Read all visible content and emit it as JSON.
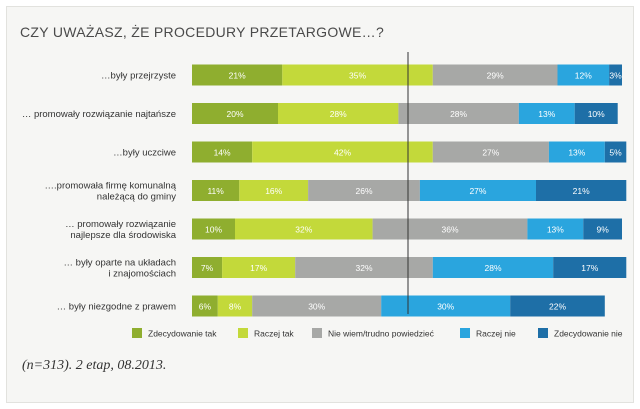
{
  "chart_data": {
    "type": "bar",
    "stacked": true,
    "orientation": "horizontal",
    "title": "CZY UWAŻASZ, ŻE PROCEDURY PRZETARGOWE…?",
    "categories": [
      [
        "…były przejrzyste"
      ],
      [
        "… promowały rozwiązanie najtańsze"
      ],
      [
        "…były uczciwe"
      ],
      [
        "….promowała firmę komunalną",
        "należącą do gminy"
      ],
      [
        "… promowały rozwiązanie",
        "najlepsze dla środowiska"
      ],
      [
        "… były oparte na układach",
        "i znajomościach"
      ],
      [
        "… były niezgodne z prawem"
      ]
    ],
    "series": [
      {
        "name": "Zdecydowanie tak",
        "color": "#8fae2f",
        "values": [
          21,
          20,
          14,
          11,
          10,
          7,
          6
        ]
      },
      {
        "name": "Raczej tak",
        "color": "#c3d93a",
        "values": [
          35,
          28,
          42,
          16,
          32,
          17,
          8
        ]
      },
      {
        "name": "Nie wiem/trudno powiedzieć",
        "color": "#a7a8a6",
        "values": [
          29,
          28,
          27,
          26,
          36,
          32,
          30
        ]
      },
      {
        "name": "Raczej nie",
        "color": "#2aa5de",
        "values": [
          12,
          13,
          13,
          27,
          13,
          28,
          30
        ]
      },
      {
        "name": "Zdecydowanie nie",
        "color": "#1e6fa7",
        "values": [
          3,
          10,
          5,
          21,
          9,
          17,
          22
        ]
      }
    ],
    "value_suffix": "%",
    "xlim": [
      0,
      100
    ],
    "legend": "bottom"
  },
  "source_note": "(n=313). 2 etap, 08.2013."
}
